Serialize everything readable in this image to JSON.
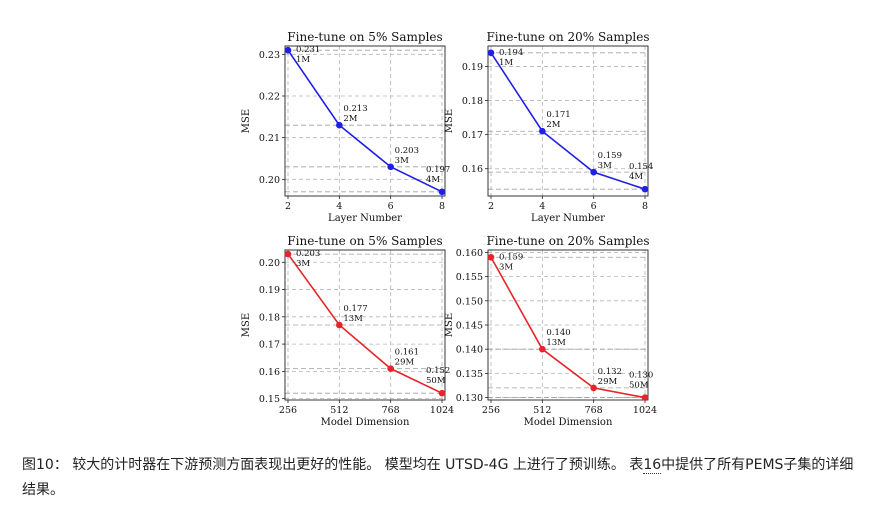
{
  "chart_data": [
    {
      "type": "line",
      "title": "Fine-tune on 5% Samples",
      "xlabel": "Layer Number",
      "ylabel": "MSE",
      "color": "#1f1fe6",
      "x": [
        2,
        4,
        6,
        8
      ],
      "xticks": [
        "2",
        "4",
        "6",
        "8"
      ],
      "values": [
        0.231,
        0.213,
        0.203,
        0.197
      ],
      "value_labels": [
        "0.231",
        "0.213",
        "0.203",
        "0.197"
      ],
      "param_labels": [
        "1M",
        "2M",
        "3M",
        "4M"
      ],
      "ylim": [
        0.196,
        0.232
      ],
      "yticks": [
        0.2,
        0.21,
        0.22,
        0.23
      ],
      "ytick_labels": [
        "0.20",
        "0.21",
        "0.22",
        "0.23"
      ],
      "grid": true
    },
    {
      "type": "line",
      "title": "Fine-tune on 20% Samples",
      "xlabel": "Layer Number",
      "ylabel": "MSE",
      "color": "#1f1fe6",
      "x": [
        2,
        4,
        6,
        8
      ],
      "xticks": [
        "2",
        "4",
        "6",
        "8"
      ],
      "values": [
        0.194,
        0.171,
        0.159,
        0.154
      ],
      "value_labels": [
        "0.194",
        "0.171",
        "0.159",
        "0.154"
      ],
      "param_labels": [
        "1M",
        "2M",
        "3M",
        "4M"
      ],
      "ylim": [
        0.152,
        0.196
      ],
      "yticks": [
        0.16,
        0.17,
        0.18,
        0.19
      ],
      "ytick_labels": [
        "0.16",
        "0.17",
        "0.18",
        "0.19"
      ],
      "grid": true
    },
    {
      "type": "line",
      "title": "Fine-tune on 5% Samples",
      "xlabel": "Model Dimension",
      "ylabel": "MSE",
      "color": "#e8232a",
      "x": [
        256,
        512,
        768,
        1024
      ],
      "xticks": [
        "256",
        "512",
        "768",
        "1024"
      ],
      "values": [
        0.203,
        0.177,
        0.161,
        0.152
      ],
      "value_labels": [
        "0.203",
        "0.177",
        "0.161",
        "0.152"
      ],
      "param_labels": [
        "3M",
        "13M",
        "29M",
        "50M"
      ],
      "ylim": [
        0.1495,
        0.2045
      ],
      "yticks": [
        0.15,
        0.16,
        0.17,
        0.18,
        0.19,
        0.2
      ],
      "ytick_labels": [
        "0.15",
        "0.16",
        "0.17",
        "0.18",
        "0.19",
        "0.20"
      ],
      "grid": true
    },
    {
      "type": "line",
      "title": "Fine-tune on 20% Samples",
      "xlabel": "Model Dimension",
      "ylabel": "MSE",
      "color": "#e8232a",
      "x": [
        256,
        512,
        768,
        1024
      ],
      "xticks": [
        "256",
        "512",
        "768",
        "1024"
      ],
      "values": [
        0.159,
        0.14,
        0.132,
        0.13
      ],
      "value_labels": [
        "0.159",
        "0.140",
        "0.132",
        "0.130"
      ],
      "param_labels": [
        "3M",
        "13M",
        "29M",
        "50M"
      ],
      "ylim": [
        0.1295,
        0.1605
      ],
      "yticks": [
        0.13,
        0.135,
        0.14,
        0.145,
        0.15,
        0.155,
        0.16
      ],
      "ytick_labels": [
        "0.130",
        "0.135",
        "0.140",
        "0.145",
        "0.150",
        "0.155",
        "0.160"
      ],
      "grid": true
    }
  ],
  "caption": {
    "text_before": "图10： 较大的计时器在下游预测方面表现出更好的性能。 模型均在 UTSD-4G 上进行了预训练。 表",
    "ref": "16",
    "text_after": "中提供了所有PEMS子集的详细结果。"
  }
}
